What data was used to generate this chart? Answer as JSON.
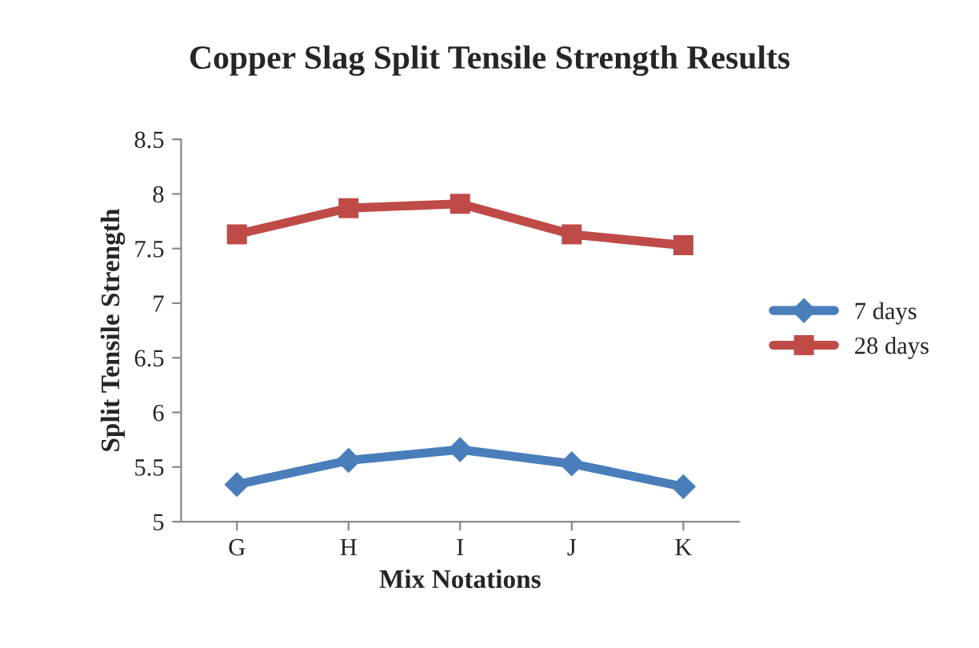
{
  "chart_data": {
    "type": "line",
    "title": "Copper Slag Split Tensile Strength Results",
    "xlabel": "Mix Notations",
    "ylabel": "Split Tensile Strength",
    "categories": [
      "G",
      "H",
      "I",
      "J",
      "K"
    ],
    "series": [
      {
        "name": "7 days",
        "color": "#4a7ebb",
        "marker": "diamond",
        "values": [
          5.34,
          5.56,
          5.66,
          5.53,
          5.32
        ]
      },
      {
        "name": "28 days",
        "color": "#be4b48",
        "marker": "square",
        "values": [
          7.63,
          7.87,
          7.91,
          7.63,
          7.53
        ]
      }
    ],
    "ylim": [
      5,
      8.5
    ],
    "yticks": [
      5,
      5.5,
      6,
      6.5,
      7,
      7.5,
      8,
      8.5
    ],
    "grid": false,
    "legend": "right"
  }
}
